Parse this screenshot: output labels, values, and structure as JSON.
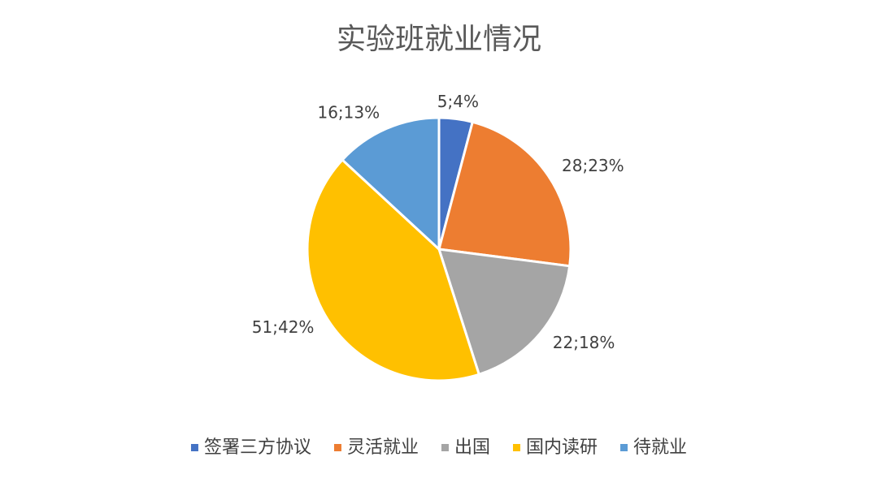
{
  "chart_data": {
    "type": "pie",
    "title": "实验班就业情况",
    "categories": [
      "签署三方协议",
      "灵活就业",
      "出国",
      "国内读研",
      "待就业"
    ],
    "values": [
      5,
      28,
      22,
      51,
      16
    ],
    "value_labels": [
      "5;4%",
      "28;23%",
      "22;18%",
      "51;42%",
      "16;13%"
    ],
    "colors": [
      "#4472c4",
      "#ed7d31",
      "#a5a5a5",
      "#ffc000",
      "#5b9bd5"
    ],
    "legend": "bottom"
  }
}
